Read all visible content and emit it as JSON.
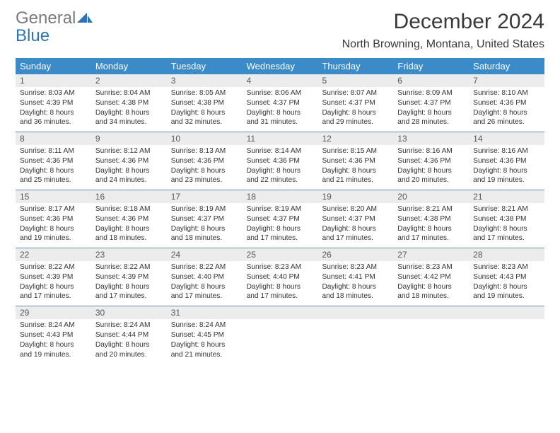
{
  "logo": {
    "text1": "General",
    "text2": "Blue"
  },
  "title": "December 2024",
  "location": "North Browning, Montana, United States",
  "colors": {
    "header_bg": "#3b8bc9",
    "header_text": "#ffffff",
    "daynum_bg": "#ececec",
    "rule": "#6a8caa",
    "body_text": "#333333",
    "logo_gray": "#7a7a7a",
    "logo_blue": "#2d74b6"
  },
  "days_of_week": [
    "Sunday",
    "Monday",
    "Tuesday",
    "Wednesday",
    "Thursday",
    "Friday",
    "Saturday"
  ],
  "weeks": [
    [
      {
        "n": "1",
        "sr": "Sunrise: 8:03 AM",
        "ss": "Sunset: 4:39 PM",
        "d1": "Daylight: 8 hours",
        "d2": "and 36 minutes."
      },
      {
        "n": "2",
        "sr": "Sunrise: 8:04 AM",
        "ss": "Sunset: 4:38 PM",
        "d1": "Daylight: 8 hours",
        "d2": "and 34 minutes."
      },
      {
        "n": "3",
        "sr": "Sunrise: 8:05 AM",
        "ss": "Sunset: 4:38 PM",
        "d1": "Daylight: 8 hours",
        "d2": "and 32 minutes."
      },
      {
        "n": "4",
        "sr": "Sunrise: 8:06 AM",
        "ss": "Sunset: 4:37 PM",
        "d1": "Daylight: 8 hours",
        "d2": "and 31 minutes."
      },
      {
        "n": "5",
        "sr": "Sunrise: 8:07 AM",
        "ss": "Sunset: 4:37 PM",
        "d1": "Daylight: 8 hours",
        "d2": "and 29 minutes."
      },
      {
        "n": "6",
        "sr": "Sunrise: 8:09 AM",
        "ss": "Sunset: 4:37 PM",
        "d1": "Daylight: 8 hours",
        "d2": "and 28 minutes."
      },
      {
        "n": "7",
        "sr": "Sunrise: 8:10 AM",
        "ss": "Sunset: 4:36 PM",
        "d1": "Daylight: 8 hours",
        "d2": "and 26 minutes."
      }
    ],
    [
      {
        "n": "8",
        "sr": "Sunrise: 8:11 AM",
        "ss": "Sunset: 4:36 PM",
        "d1": "Daylight: 8 hours",
        "d2": "and 25 minutes."
      },
      {
        "n": "9",
        "sr": "Sunrise: 8:12 AM",
        "ss": "Sunset: 4:36 PM",
        "d1": "Daylight: 8 hours",
        "d2": "and 24 minutes."
      },
      {
        "n": "10",
        "sr": "Sunrise: 8:13 AM",
        "ss": "Sunset: 4:36 PM",
        "d1": "Daylight: 8 hours",
        "d2": "and 23 minutes."
      },
      {
        "n": "11",
        "sr": "Sunrise: 8:14 AM",
        "ss": "Sunset: 4:36 PM",
        "d1": "Daylight: 8 hours",
        "d2": "and 22 minutes."
      },
      {
        "n": "12",
        "sr": "Sunrise: 8:15 AM",
        "ss": "Sunset: 4:36 PM",
        "d1": "Daylight: 8 hours",
        "d2": "and 21 minutes."
      },
      {
        "n": "13",
        "sr": "Sunrise: 8:16 AM",
        "ss": "Sunset: 4:36 PM",
        "d1": "Daylight: 8 hours",
        "d2": "and 20 minutes."
      },
      {
        "n": "14",
        "sr": "Sunrise: 8:16 AM",
        "ss": "Sunset: 4:36 PM",
        "d1": "Daylight: 8 hours",
        "d2": "and 19 minutes."
      }
    ],
    [
      {
        "n": "15",
        "sr": "Sunrise: 8:17 AM",
        "ss": "Sunset: 4:36 PM",
        "d1": "Daylight: 8 hours",
        "d2": "and 19 minutes."
      },
      {
        "n": "16",
        "sr": "Sunrise: 8:18 AM",
        "ss": "Sunset: 4:36 PM",
        "d1": "Daylight: 8 hours",
        "d2": "and 18 minutes."
      },
      {
        "n": "17",
        "sr": "Sunrise: 8:19 AM",
        "ss": "Sunset: 4:37 PM",
        "d1": "Daylight: 8 hours",
        "d2": "and 18 minutes."
      },
      {
        "n": "18",
        "sr": "Sunrise: 8:19 AM",
        "ss": "Sunset: 4:37 PM",
        "d1": "Daylight: 8 hours",
        "d2": "and 17 minutes."
      },
      {
        "n": "19",
        "sr": "Sunrise: 8:20 AM",
        "ss": "Sunset: 4:37 PM",
        "d1": "Daylight: 8 hours",
        "d2": "and 17 minutes."
      },
      {
        "n": "20",
        "sr": "Sunrise: 8:21 AM",
        "ss": "Sunset: 4:38 PM",
        "d1": "Daylight: 8 hours",
        "d2": "and 17 minutes."
      },
      {
        "n": "21",
        "sr": "Sunrise: 8:21 AM",
        "ss": "Sunset: 4:38 PM",
        "d1": "Daylight: 8 hours",
        "d2": "and 17 minutes."
      }
    ],
    [
      {
        "n": "22",
        "sr": "Sunrise: 8:22 AM",
        "ss": "Sunset: 4:39 PM",
        "d1": "Daylight: 8 hours",
        "d2": "and 17 minutes."
      },
      {
        "n": "23",
        "sr": "Sunrise: 8:22 AM",
        "ss": "Sunset: 4:39 PM",
        "d1": "Daylight: 8 hours",
        "d2": "and 17 minutes."
      },
      {
        "n": "24",
        "sr": "Sunrise: 8:22 AM",
        "ss": "Sunset: 4:40 PM",
        "d1": "Daylight: 8 hours",
        "d2": "and 17 minutes."
      },
      {
        "n": "25",
        "sr": "Sunrise: 8:23 AM",
        "ss": "Sunset: 4:40 PM",
        "d1": "Daylight: 8 hours",
        "d2": "and 17 minutes."
      },
      {
        "n": "26",
        "sr": "Sunrise: 8:23 AM",
        "ss": "Sunset: 4:41 PM",
        "d1": "Daylight: 8 hours",
        "d2": "and 18 minutes."
      },
      {
        "n": "27",
        "sr": "Sunrise: 8:23 AM",
        "ss": "Sunset: 4:42 PM",
        "d1": "Daylight: 8 hours",
        "d2": "and 18 minutes."
      },
      {
        "n": "28",
        "sr": "Sunrise: 8:23 AM",
        "ss": "Sunset: 4:43 PM",
        "d1": "Daylight: 8 hours",
        "d2": "and 19 minutes."
      }
    ],
    [
      {
        "n": "29",
        "sr": "Sunrise: 8:24 AM",
        "ss": "Sunset: 4:43 PM",
        "d1": "Daylight: 8 hours",
        "d2": "and 19 minutes."
      },
      {
        "n": "30",
        "sr": "Sunrise: 8:24 AM",
        "ss": "Sunset: 4:44 PM",
        "d1": "Daylight: 8 hours",
        "d2": "and 20 minutes."
      },
      {
        "n": "31",
        "sr": "Sunrise: 8:24 AM",
        "ss": "Sunset: 4:45 PM",
        "d1": "Daylight: 8 hours",
        "d2": "and 21 minutes."
      },
      {
        "n": "",
        "sr": "",
        "ss": "",
        "d1": "",
        "d2": ""
      },
      {
        "n": "",
        "sr": "",
        "ss": "",
        "d1": "",
        "d2": ""
      },
      {
        "n": "",
        "sr": "",
        "ss": "",
        "d1": "",
        "d2": ""
      },
      {
        "n": "",
        "sr": "",
        "ss": "",
        "d1": "",
        "d2": ""
      }
    ]
  ]
}
